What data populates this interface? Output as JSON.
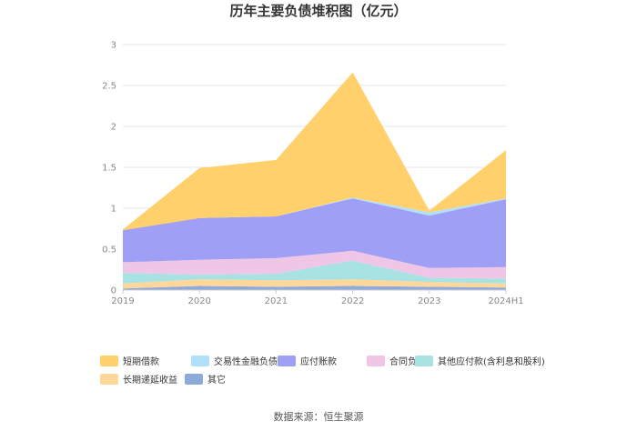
{
  "chart_data": {
    "type": "area",
    "stacked": true,
    "title": "历年主要负债堆积图（亿元）",
    "x": [
      "2019",
      "2020",
      "2021",
      "2022",
      "2023",
      "2024H1"
    ],
    "ylim": [
      0,
      3
    ],
    "yticks": [
      "0",
      "0.5",
      "1",
      "1.5",
      "2",
      "2.5",
      "3"
    ],
    "grid": true,
    "legend_position": "bottom",
    "series": [
      {
        "name": "其它",
        "color": "#8eaadb",
        "values": [
          0.02,
          0.05,
          0.04,
          0.05,
          0.04,
          0.03
        ]
      },
      {
        "name": "长期递延收益",
        "color": "#ffd79a",
        "values": [
          0.06,
          0.08,
          0.08,
          0.08,
          0.06,
          0.05
        ]
      },
      {
        "name": "其他应付款(含利息和股利)",
        "color": "#a8e2e2",
        "values": [
          0.13,
          0.06,
          0.08,
          0.23,
          0.05,
          0.06
        ]
      },
      {
        "name": "合同负债",
        "color": "#f0c6e6",
        "values": [
          0.13,
          0.18,
          0.19,
          0.12,
          0.12,
          0.14
        ]
      },
      {
        "name": "应付账款",
        "color": "#9f9ff5",
        "values": [
          0.39,
          0.51,
          0.51,
          0.64,
          0.64,
          0.83
        ]
      },
      {
        "name": "交易性金融负债合计",
        "color": "#b0e0fa",
        "values": [
          0.0,
          0.0,
          0.0,
          0.01,
          0.04,
          0.01
        ]
      },
      {
        "name": "短期借款",
        "color": "#ffd06c",
        "values": [
          0.01,
          0.61,
          0.69,
          1.53,
          0.02,
          0.59
        ]
      }
    ],
    "legend_order": [
      "短期借款",
      "交易性金融负债合计",
      "应付账款",
      "合同负债",
      "其他应付款(含利息和股利)",
      "长期递延收益",
      "其它"
    ],
    "source": "数据来源：恒生聚源"
  }
}
